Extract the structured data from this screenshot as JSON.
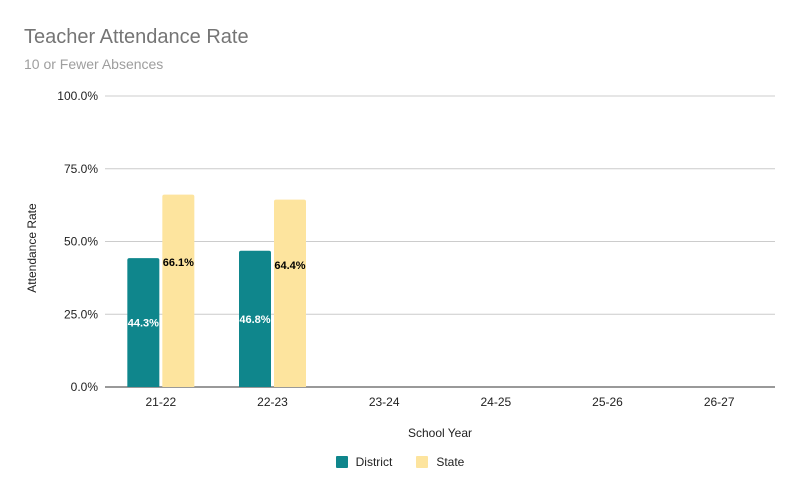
{
  "chart_data": {
    "type": "bar",
    "title": "Teacher Attendance Rate",
    "subtitle": "10 or Fewer Absences",
    "xlabel": "School Year",
    "ylabel": "Attendance Rate",
    "categories": [
      "21-22",
      "22-23",
      "23-24",
      "24-25",
      "25-26",
      "26-27"
    ],
    "series": [
      {
        "name": "District",
        "color": "#0f868c",
        "label_color": "#ffffff",
        "values": [
          44.3,
          46.8,
          null,
          null,
          null,
          null
        ],
        "labels": [
          "44.3%",
          "46.8%",
          null,
          null,
          null,
          null
        ]
      },
      {
        "name": "State",
        "color": "#fde49e",
        "label_color": "#000000",
        "values": [
          66.1,
          64.4,
          null,
          null,
          null,
          null
        ],
        "labels": [
          "66.1%",
          "64.4%",
          null,
          null,
          null,
          null
        ]
      }
    ],
    "ylim": [
      0,
      100
    ],
    "yticks": [
      0,
      25,
      50,
      75,
      100
    ],
    "ytick_labels": [
      "0.0%",
      "25.0%",
      "50.0%",
      "75.0%",
      "100.0%"
    ],
    "grid": true,
    "legend_position": "bottom"
  }
}
